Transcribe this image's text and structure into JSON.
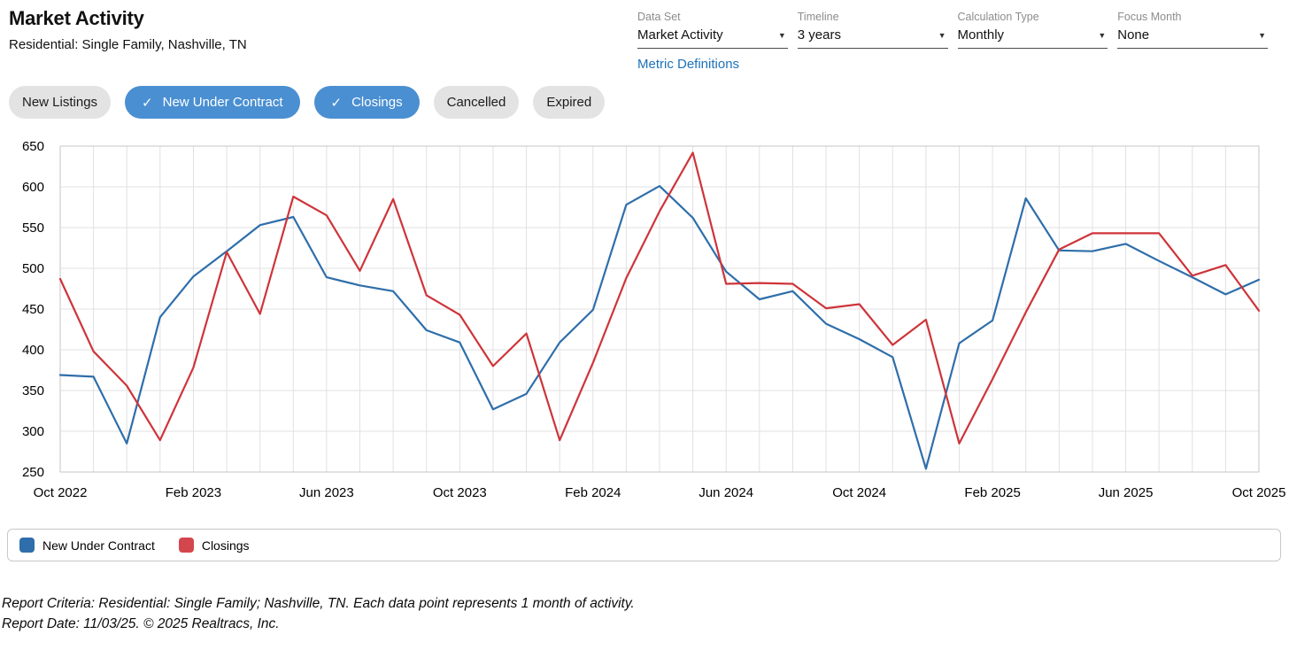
{
  "header": {
    "title": "Market Activity",
    "subtitle": "Residential: Single Family, Nashville, TN",
    "metric_definitions_label": "Metric Definitions"
  },
  "controls": [
    {
      "label": "Data Set",
      "value": "Market Activity"
    },
    {
      "label": "Timeline",
      "value": "3 years"
    },
    {
      "label": "Calculation Type",
      "value": "Monthly"
    },
    {
      "label": "Focus Month",
      "value": "None"
    }
  ],
  "filters": {
    "buttons": [
      {
        "label": "New Listings",
        "selected": false
      },
      {
        "label": "New Under Contract",
        "selected": true
      },
      {
        "label": "Closings",
        "selected": true
      },
      {
        "label": "Cancelled",
        "selected": false
      },
      {
        "label": "Expired",
        "selected": false
      }
    ]
  },
  "icons": {
    "chevron_down": "▼",
    "check": "✓"
  },
  "chart_data": {
    "type": "line",
    "title": "Market Activity",
    "xlabel": "",
    "ylabel": "",
    "ylim": [
      250,
      650
    ],
    "ytick_step": 50,
    "x_tick_every": 4,
    "grid": true,
    "legend_position": "bottom",
    "categories": [
      "Oct 2022",
      "Nov 2022",
      "Dec 2022",
      "Jan 2023",
      "Feb 2023",
      "Mar 2023",
      "Apr 2023",
      "May 2023",
      "Jun 2023",
      "Jul 2023",
      "Aug 2023",
      "Sep 2023",
      "Oct 2023",
      "Nov 2023",
      "Dec 2023",
      "Jan 2024",
      "Feb 2024",
      "Mar 2024",
      "Apr 2024",
      "May 2024",
      "Jun 2024",
      "Jul 2024",
      "Aug 2024",
      "Sep 2024",
      "Oct 2024",
      "Nov 2024",
      "Dec 2024",
      "Jan 2025",
      "Feb 2025",
      "Mar 2025",
      "Apr 2025",
      "May 2025",
      "Jun 2025",
      "Jul 2025",
      "Aug 2025",
      "Sep 2025",
      "Oct 2025"
    ],
    "series": [
      {
        "name": "New Under Contract",
        "color": "#2e6eaa",
        "values": [
          369,
          367,
          285,
          440,
          490,
          521,
          553,
          563,
          489,
          479,
          472,
          424,
          409,
          327,
          346,
          409,
          449,
          578,
          601,
          562,
          496,
          462,
          472,
          432,
          413,
          391,
          254,
          408,
          436,
          586,
          522,
          521,
          530,
          509,
          489,
          468,
          486
        ]
      },
      {
        "name": "Closings",
        "color": "#ce3439",
        "values": [
          487,
          398,
          356,
          289,
          378,
          520,
          444,
          588,
          565,
          497,
          585,
          467,
          443,
          380,
          420,
          289,
          384,
          488,
          570,
          642,
          481,
          482,
          481,
          451,
          456,
          406,
          437,
          285,
          364,
          446,
          523,
          543,
          543,
          543,
          491,
          504,
          448
        ]
      }
    ]
  },
  "legend": {
    "items": [
      {
        "label": "New Under Contract",
        "color": "#2e6eaa"
      },
      {
        "label": "Closings",
        "color": "#d4464d"
      }
    ]
  },
  "footer": {
    "line1": "Report Criteria: Residential: Single Family; Nashville, TN. Each data point represents 1 month of activity.",
    "line2": "Report Date: 11/03/25. © 2025 Realtracs, Inc."
  },
  "theme": {
    "accent_blue": "#4a8fd2",
    "link_blue": "#1d72b8",
    "pill_gray": "#e3e3e3",
    "grid_color": "#e1e1e1",
    "axis_border": "#c6c6c6"
  }
}
